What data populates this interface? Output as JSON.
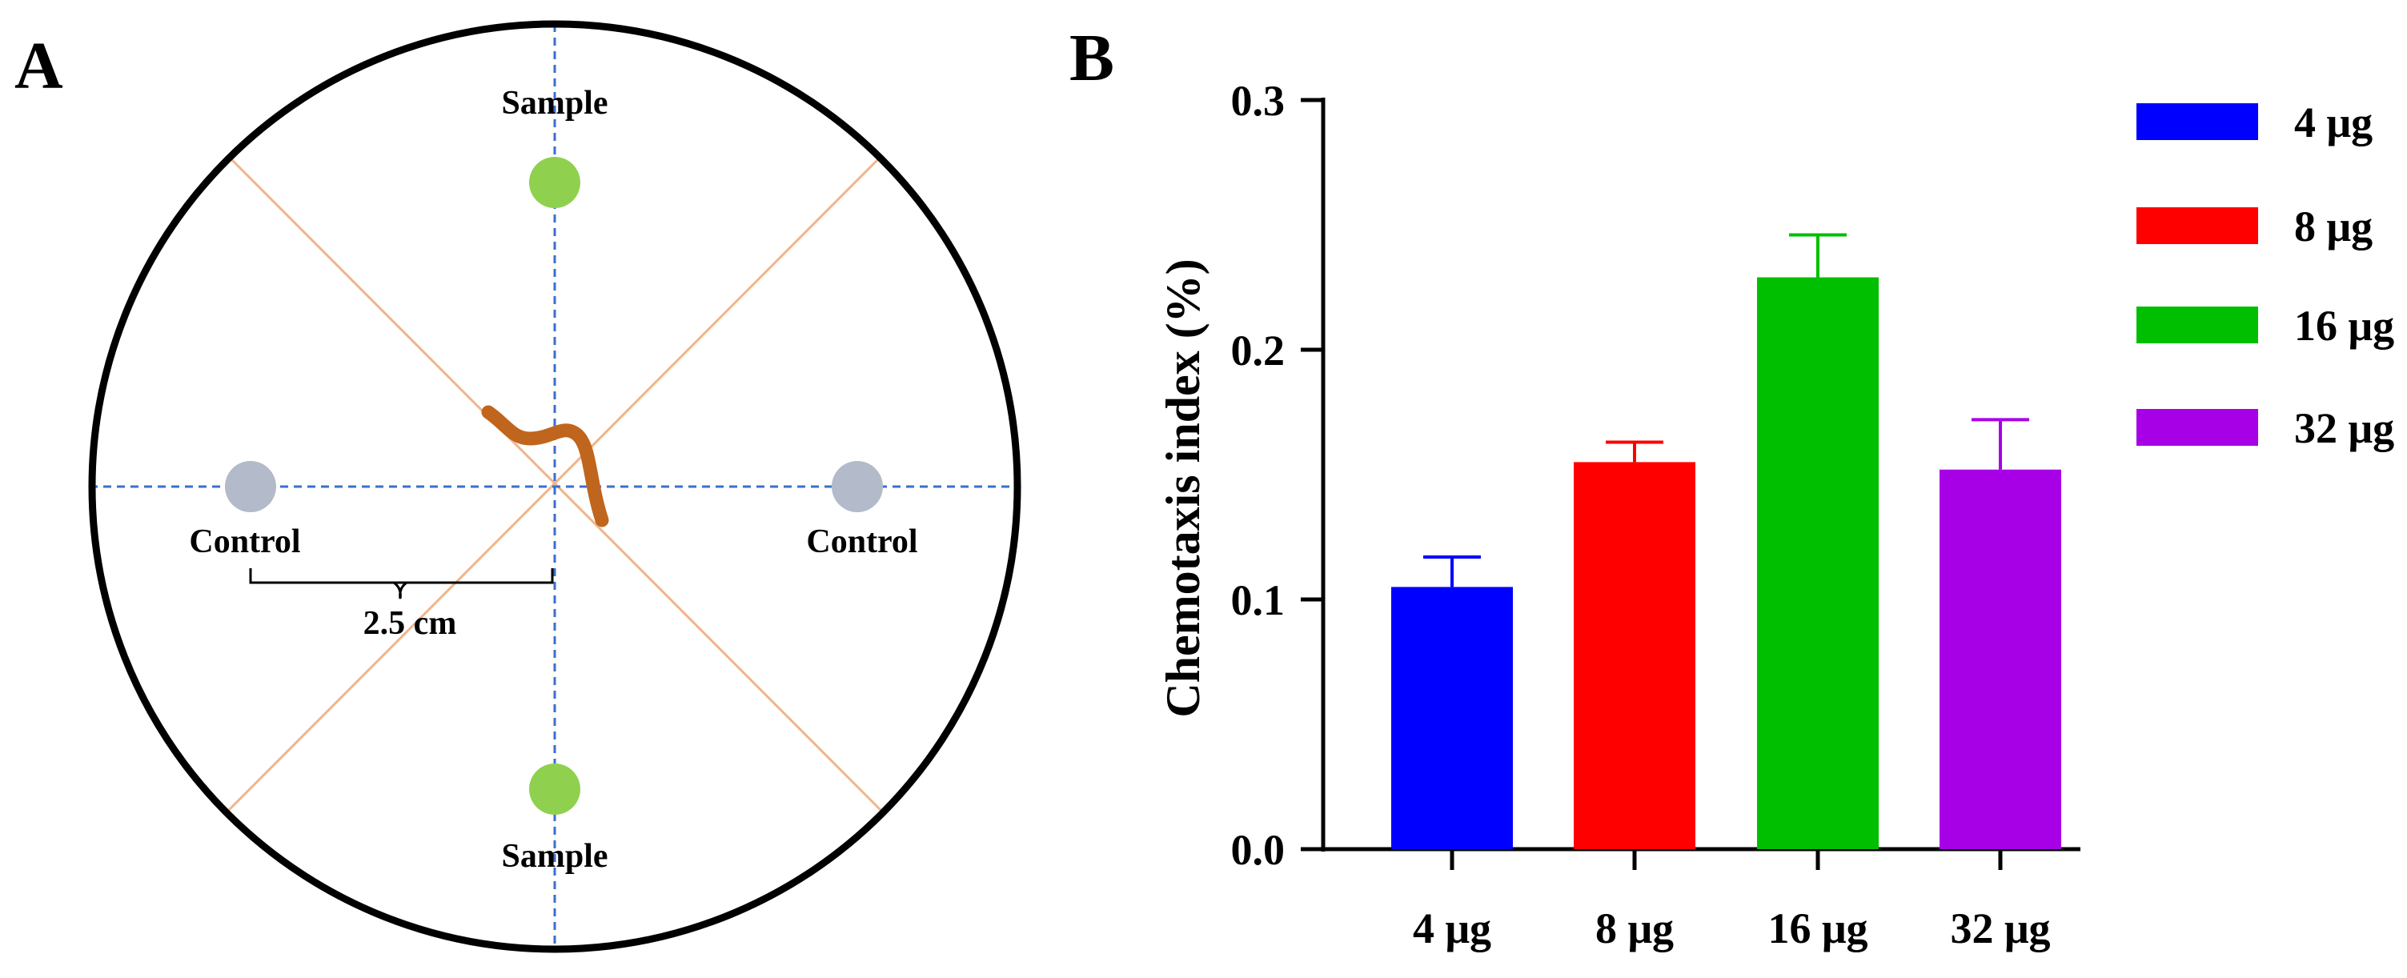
{
  "panel_a": {
    "letter": "A",
    "sample_top_label": "Sample",
    "sample_bottom_label": "Sample",
    "control_left_label": "Control",
    "control_right_label": "Control",
    "distance_label": "2.5 cm",
    "colors": {
      "dish_outline": "#000000",
      "axis_dashed": "#3a6fcf",
      "diagonal": "#f2b48a",
      "sample_spot": "#8fd14f",
      "control_spot": "#b3bac9",
      "worm": "#c0651d"
    }
  },
  "panel_b": {
    "letter": "B"
  },
  "chart_data": {
    "type": "bar",
    "title": "",
    "xlabel": "",
    "ylabel": "Chemotaxis index (%)",
    "categories": [
      "4 μg",
      "8 μg",
      "16 μg",
      "32 μg"
    ],
    "values": [
      0.105,
      0.155,
      0.229,
      0.152
    ],
    "errors": [
      0.012,
      0.008,
      0.017,
      0.02
    ],
    "colors": [
      "#0000ff",
      "#ff0000",
      "#00bf00",
      "#a800e6"
    ],
    "ylim": [
      0,
      0.3
    ],
    "yticks": [
      "0.0",
      "0.1",
      "0.2",
      "0.3"
    ],
    "ytick_values": [
      0,
      0.1,
      0.2,
      0.3
    ],
    "grid": false,
    "legend_position": "right",
    "legend": [
      "4 μg",
      "8 μg",
      "16 μg",
      "32 μg"
    ]
  }
}
